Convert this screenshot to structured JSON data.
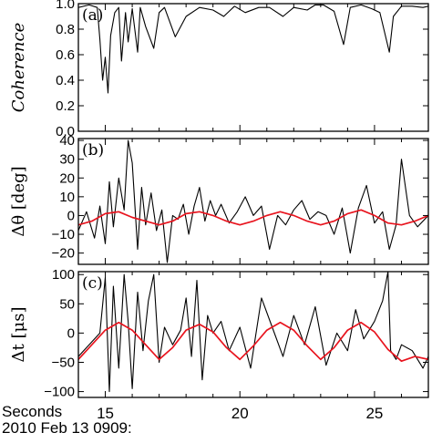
{
  "chart_data": [
    {
      "type": "line",
      "panel_label": "(a)",
      "ylabel": "Coherence",
      "ylim": [
        0.0,
        1.0
      ],
      "yticks": [
        "0.0",
        "0.2",
        "0.4",
        "0.6",
        "0.8",
        "1.0"
      ],
      "xlim": [
        14,
        27
      ],
      "series": [
        {
          "color": "#000000",
          "x": [
            14.0,
            14.4,
            14.7,
            14.8,
            14.9,
            15.0,
            15.1,
            15.2,
            15.35,
            15.5,
            15.6,
            15.75,
            15.85,
            16.0,
            16.2,
            16.3,
            16.5,
            16.8,
            17.0,
            17.2,
            17.6,
            18.0,
            18.5,
            19.0,
            19.4,
            19.8,
            20.2,
            20.7,
            21.1,
            21.6,
            22.0,
            22.5,
            22.8,
            23.1,
            23.5,
            23.85,
            24.1,
            24.5,
            24.9,
            25.2,
            25.55,
            25.7,
            26.0,
            26.4,
            26.8,
            27.0
          ],
          "y": [
            0.97,
            0.99,
            0.97,
            0.72,
            0.4,
            0.58,
            0.3,
            0.75,
            0.93,
            0.97,
            0.55,
            0.93,
            0.7,
            0.96,
            0.62,
            0.97,
            0.82,
            0.65,
            0.93,
            0.97,
            0.74,
            0.9,
            0.97,
            0.95,
            0.9,
            0.98,
            0.93,
            0.97,
            0.97,
            0.9,
            0.97,
            0.95,
            0.99,
            0.99,
            0.94,
            0.68,
            0.97,
            0.99,
            0.96,
            0.93,
            0.62,
            0.9,
            0.98,
            0.98,
            0.97,
            0.98
          ]
        }
      ]
    },
    {
      "type": "line",
      "panel_label": "(b)",
      "ylabel": "Δθ [deg]",
      "ylim": [
        -26,
        41
      ],
      "yticks": [
        "−20",
        "−10",
        "0",
        "10",
        "20",
        "30",
        "40"
      ],
      "xlim": [
        14,
        27
      ],
      "series": [
        {
          "color": "#000000",
          "x": [
            14.0,
            14.3,
            14.6,
            14.8,
            15.0,
            15.15,
            15.3,
            15.5,
            15.7,
            15.85,
            16.0,
            16.2,
            16.35,
            16.5,
            16.7,
            16.9,
            17.1,
            17.3,
            17.5,
            17.7,
            17.9,
            18.1,
            18.3,
            18.5,
            18.7,
            18.9,
            19.1,
            19.3,
            19.6,
            19.9,
            20.2,
            20.5,
            20.8,
            21.1,
            21.4,
            21.7,
            22.0,
            22.3,
            22.6,
            22.9,
            23.2,
            23.5,
            23.8,
            24.1,
            24.4,
            24.7,
            25.0,
            25.3,
            25.55,
            25.8,
            26.0,
            26.3,
            26.6,
            27.0
          ],
          "y": [
            -8,
            2,
            -12,
            5,
            -15,
            18,
            -6,
            20,
            3,
            40,
            28,
            -18,
            15,
            -5,
            12,
            -8,
            3,
            -25,
            0,
            -2,
            6,
            -10,
            5,
            15,
            -3,
            8,
            0,
            6,
            -4,
            2,
            10,
            0,
            5,
            -18,
            0,
            -5,
            3,
            8,
            -2,
            2,
            0,
            -10,
            4,
            -20,
            4,
            16,
            -4,
            2,
            -18,
            -5,
            30,
            0,
            -6,
            0
          ]
        },
        {
          "color": "#e8141e",
          "x": [
            14.0,
            14.5,
            15.0,
            15.5,
            16.0,
            16.5,
            17.0,
            17.5,
            18.0,
            18.5,
            19.0,
            19.5,
            20.0,
            20.5,
            21.0,
            21.5,
            22.0,
            22.5,
            23.0,
            23.5,
            24.0,
            24.5,
            25.0,
            25.5,
            26.0,
            26.5,
            27.0
          ],
          "y": [
            -5,
            -3,
            1,
            2,
            -1,
            -3,
            -5,
            -3,
            1,
            2,
            0,
            -3,
            -5,
            -3,
            0,
            2,
            0,
            -3,
            -5,
            -3,
            1,
            3,
            0,
            -4,
            -5,
            -3,
            0
          ]
        }
      ]
    },
    {
      "type": "line",
      "panel_label": "(c)",
      "ylabel": "Δt [μs]",
      "ylim": [
        -110,
        105
      ],
      "yticks": [
        "−100",
        "−50",
        "0",
        "50",
        "100"
      ],
      "xlim": [
        14,
        27
      ],
      "xticks": [
        "15",
        "20",
        "25"
      ],
      "series": [
        {
          "color": "#000000",
          "x": [
            14.0,
            14.4,
            14.8,
            15.0,
            15.15,
            15.3,
            15.5,
            15.7,
            15.85,
            16.0,
            16.2,
            16.4,
            16.6,
            16.8,
            17.0,
            17.2,
            17.5,
            17.8,
            18.0,
            18.2,
            18.4,
            18.6,
            18.8,
            19.0,
            19.3,
            19.6,
            20.0,
            20.4,
            20.8,
            21.2,
            21.6,
            22.0,
            22.4,
            22.8,
            23.2,
            23.6,
            24.0,
            24.3,
            24.6,
            25.0,
            25.3,
            25.5,
            25.6,
            25.8,
            26.0,
            26.4,
            26.8,
            27.0
          ],
          "y": [
            -40,
            -20,
            0,
            95,
            -100,
            80,
            -60,
            100,
            20,
            -95,
            70,
            -30,
            55,
            100,
            -50,
            10,
            -20,
            5,
            60,
            -40,
            90,
            -80,
            30,
            0,
            20,
            -30,
            10,
            -60,
            60,
            10,
            -40,
            30,
            -20,
            45,
            -55,
            0,
            -30,
            40,
            -10,
            20,
            55,
            105,
            -30,
            -45,
            -20,
            -30,
            -60,
            -40
          ]
        },
        {
          "color": "#e8141e",
          "x": [
            14.0,
            14.5,
            15.0,
            15.5,
            16.0,
            16.5,
            17.0,
            17.5,
            18.0,
            18.5,
            19.0,
            19.5,
            20.0,
            20.5,
            21.0,
            21.5,
            22.0,
            22.5,
            23.0,
            23.5,
            24.0,
            24.5,
            25.0,
            25.5,
            26.0,
            26.5,
            27.0
          ],
          "y": [
            -45,
            -20,
            5,
            18,
            5,
            -20,
            -45,
            -25,
            5,
            15,
            2,
            -25,
            -45,
            -22,
            5,
            18,
            5,
            -22,
            -45,
            -25,
            5,
            18,
            2,
            -28,
            -48,
            -40,
            -45
          ]
        }
      ]
    }
  ],
  "footer": {
    "x_title": "Seconds",
    "date_line": "2010 Feb 13 0909:"
  }
}
